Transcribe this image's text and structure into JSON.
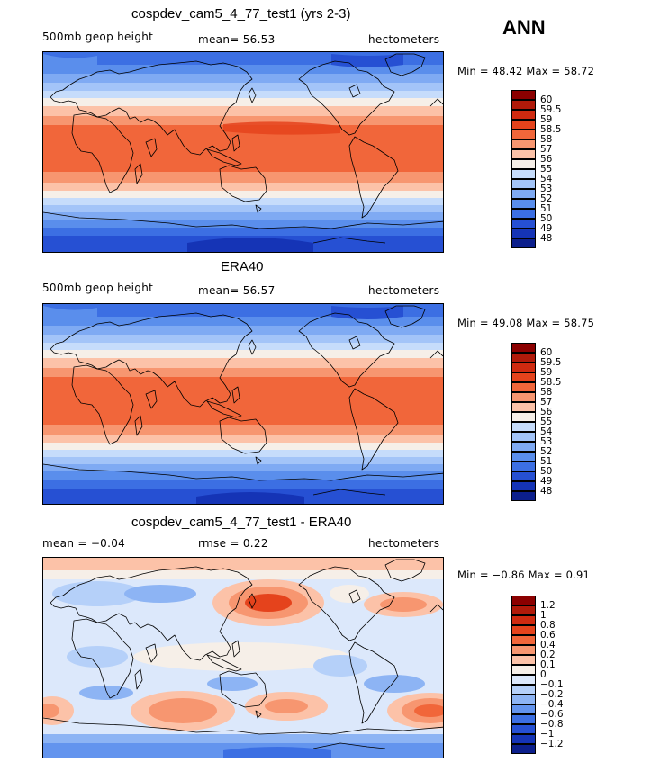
{
  "season": "ANN",
  "panels": [
    {
      "title": "cospdev_cam5_4_77_test1 (yrs 2-3)",
      "left_label": "500mb geop height",
      "stat": "mean=  56.53",
      "units": "hectometers",
      "minmax": "Min =  48.42 Max =  58.72",
      "colorbar": {
        "colors": [
          "#8b0000",
          "#b01a0a",
          "#cf2a10",
          "#e5431c",
          "#f1663a",
          "#f79670",
          "#fcc2a8",
          "#f6efe8",
          "#c6dcfb",
          "#a3c4f8",
          "#7faaf3",
          "#5a8eec",
          "#3c6fe3",
          "#2650d3",
          "#1534b6",
          "#0c1f8c"
        ],
        "labels": [
          "60",
          "59.5",
          "59",
          "58.5",
          "58",
          "57",
          "56",
          "55",
          "54",
          "53",
          "52",
          "51",
          "50",
          "49",
          "48"
        ]
      }
    },
    {
      "title": "ERA40",
      "left_label": "500mb geop height",
      "stat": "mean=  56.57",
      "units": "hectometers",
      "minmax": "Min =  49.08 Max =  58.75",
      "colorbar": {
        "colors": [
          "#8b0000",
          "#b01a0a",
          "#cf2a10",
          "#e5431c",
          "#f1663a",
          "#f79670",
          "#fcc2a8",
          "#f6efe8",
          "#c6dcfb",
          "#a3c4f8",
          "#7faaf3",
          "#5a8eec",
          "#3c6fe3",
          "#2650d3",
          "#1534b6",
          "#0c1f8c"
        ],
        "labels": [
          "60",
          "59.5",
          "59",
          "58.5",
          "58",
          "57",
          "56",
          "55",
          "54",
          "53",
          "52",
          "51",
          "50",
          "49",
          "48"
        ]
      }
    },
    {
      "title": "cospdev_cam5_4_77_test1 - ERA40",
      "left_label": "mean =   −0.04",
      "stat": "rmse =    0.22",
      "units": "hectometers",
      "minmax": "Min =  −0.86 Max =   0.91",
      "colorbar": {
        "colors": [
          "#8b0000",
          "#b01a0a",
          "#cf2a10",
          "#e5431c",
          "#f1663a",
          "#f79670",
          "#fcc2a8",
          "#f6efe8",
          "#dce8fb",
          "#b5d0f9",
          "#8db4f4",
          "#6394ee",
          "#3c6fe3",
          "#2650d3",
          "#1534b6",
          "#0c1f8c"
        ],
        "labels": [
          "1.2",
          "1",
          "0.8",
          "0.6",
          "0.4",
          "0.2",
          "0.1",
          "0",
          "−0.1",
          "−0.2",
          "−0.4",
          "−0.6",
          "−0.8",
          "−1",
          "−1.2"
        ]
      }
    }
  ]
}
